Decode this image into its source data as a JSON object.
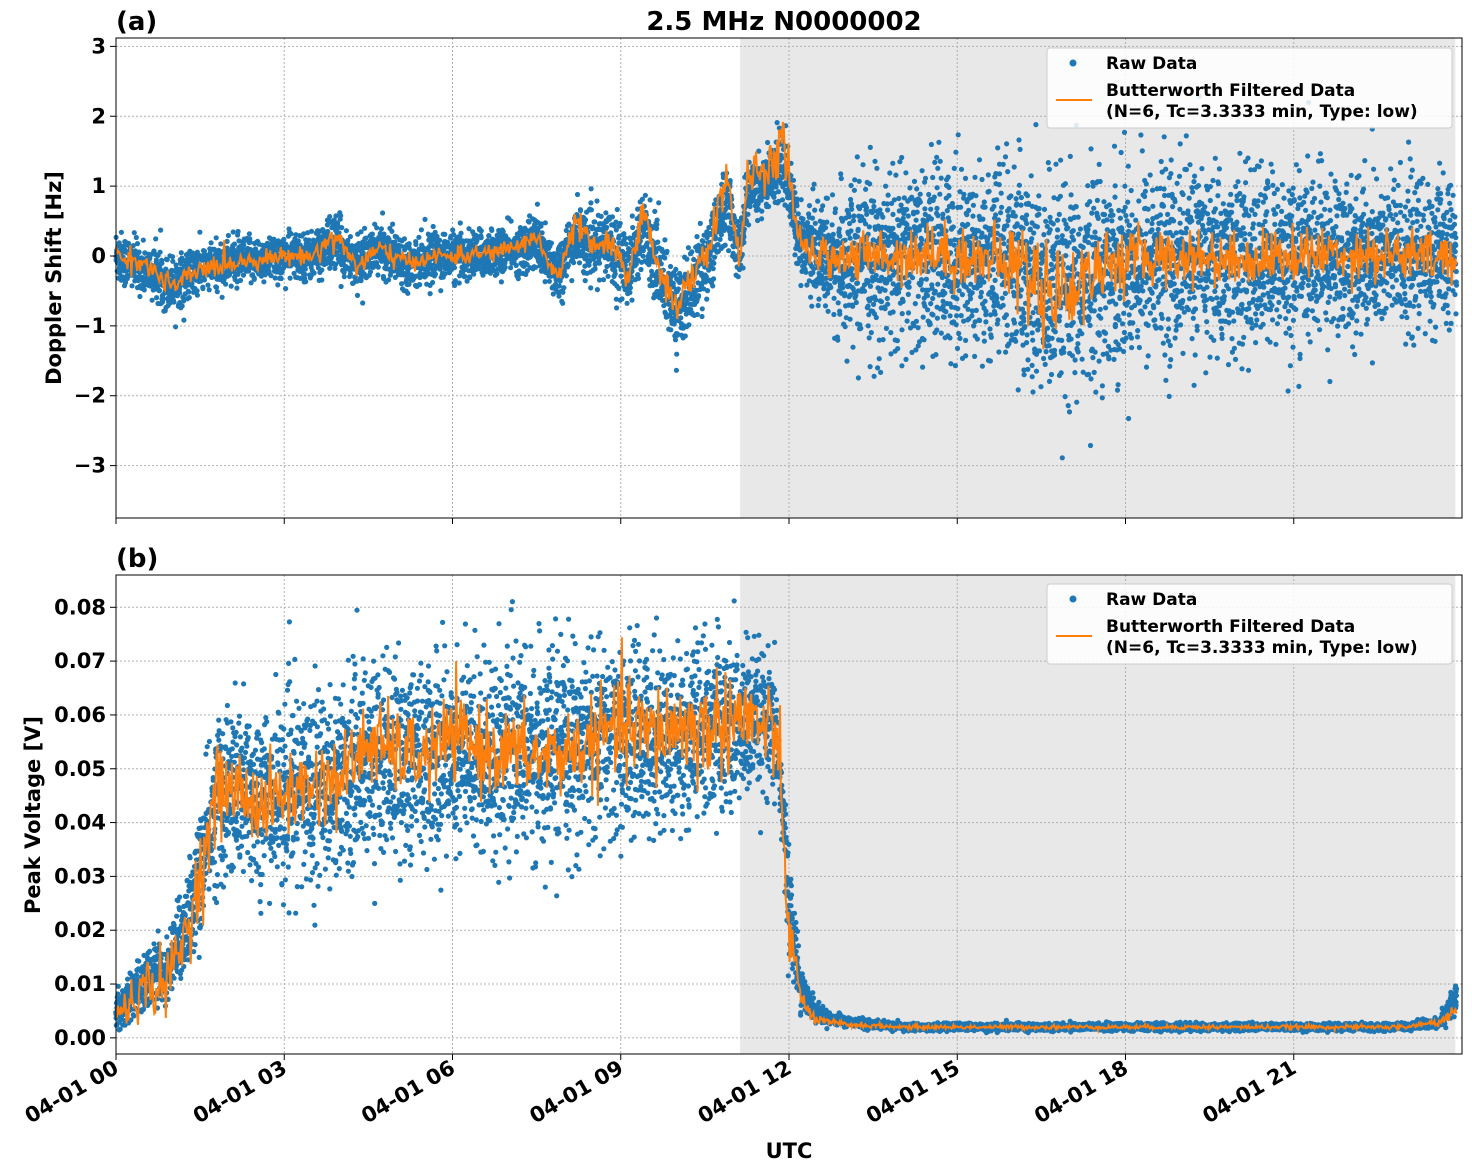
{
  "figure": {
    "title": "2.5 MHz N0000002",
    "xlabel": "UTC",
    "x_ticks": [
      "04-01 00",
      "04-01 03",
      "04-01 06",
      "04-01 09",
      "04-01 12",
      "04-01 15",
      "04-01 18",
      "04-01 21"
    ],
    "shaded_region_hours": [
      11.13,
      23.88
    ],
    "colors": {
      "raw": "#1f77b4",
      "filtered": "#ff7f0e",
      "shade": "#e8e8e8"
    }
  },
  "chart_data": [
    {
      "type": "scatter",
      "panel_label": "(a)",
      "ylabel": "Doppler Shift [Hz]",
      "xlim_hours": [
        0,
        24
      ],
      "ylim": [
        -3.75,
        3.12
      ],
      "y_ticks": [
        3,
        2,
        1,
        0,
        -1,
        -2,
        -3
      ],
      "y_tick_labels": [
        "3",
        "2",
        "1",
        "0",
        "−1",
        "−2",
        "−3"
      ],
      "grid": true,
      "legend_position": "top-right",
      "legend": [
        "Raw Data",
        "Butterworth Filtered Data",
        "(N=6, Tc=3.3333 min, Type: low)"
      ],
      "series": [
        {
          "name": "Raw Data",
          "kind": "scatter-band",
          "x_hours": [
            0,
            0.5,
            1,
            1.5,
            2,
            2.5,
            3,
            3.5,
            3.9,
            4.3,
            4.7,
            5.2,
            5.7,
            6.2,
            6.7,
            7.2,
            7.5,
            7.7,
            7.9,
            8.2,
            8.5,
            8.8,
            9.1,
            9.4,
            9.7,
            10,
            10.3,
            10.6,
            10.9,
            11.1,
            11.3,
            11.6,
            11.9,
            12.2,
            12.5,
            12.8,
            13.5,
            14.5,
            15.5,
            16,
            16.5,
            17,
            17.5,
            18,
            19,
            20,
            21,
            22,
            23,
            23.9
          ],
          "center": [
            0,
            -0.2,
            -0.4,
            -0.2,
            -0.1,
            -0.05,
            0,
            0,
            0.2,
            -0.1,
            0.1,
            -0.1,
            0,
            0,
            0.05,
            0.1,
            0.2,
            -0.1,
            -0.2,
            0.3,
            0.1,
            0.2,
            -0.2,
            0.4,
            -0.2,
            -0.8,
            -0.4,
            0.1,
            0.8,
            0,
            1.0,
            1.0,
            1.4,
            0.2,
            0,
            -0.1,
            -0.1,
            0,
            -0.05,
            -0.1,
            -0.5,
            -0.6,
            -0.2,
            -0.1,
            0,
            -0.1,
            -0.05,
            0,
            0,
            0
          ],
          "spread": [
            0.35,
            0.3,
            0.35,
            0.3,
            0.3,
            0.28,
            0.3,
            0.3,
            0.35,
            0.3,
            0.3,
            0.3,
            0.3,
            0.3,
            0.3,
            0.3,
            0.4,
            0.35,
            0.4,
            0.4,
            0.4,
            0.45,
            0.5,
            0.5,
            0.5,
            0.5,
            0.5,
            0.5,
            0.5,
            0.35,
            0.4,
            0.4,
            0.5,
            0.4,
            0.6,
            0.8,
            1.1,
            1.2,
            1.2,
            1.3,
            1.4,
            1.4,
            1.3,
            1.2,
            1.2,
            1.15,
            1.1,
            1.0,
            1.0,
            0.9
          ]
        },
        {
          "name": "Butterworth Filtered Data",
          "kind": "line",
          "x_hours": [
            0,
            0.5,
            1,
            1.5,
            2,
            2.5,
            3,
            3.5,
            3.9,
            4.3,
            4.7,
            5.2,
            5.7,
            6.2,
            6.7,
            7.2,
            7.5,
            7.7,
            7.9,
            8.2,
            8.5,
            8.8,
            9.1,
            9.4,
            9.7,
            10,
            10.3,
            10.6,
            10.9,
            11.1,
            11.3,
            11.6,
            11.9,
            12.2,
            12.5,
            12.8,
            13.5,
            14.5,
            15.5,
            16,
            16.5,
            17,
            17.5,
            18,
            19,
            20,
            21,
            22,
            23,
            23.9
          ],
          "y": [
            0,
            -0.1,
            -0.45,
            -0.2,
            -0.1,
            -0.05,
            0,
            0,
            0.3,
            -0.15,
            0.1,
            -0.1,
            0,
            0,
            0.05,
            0.15,
            0.3,
            -0.1,
            -0.3,
            0.5,
            0.1,
            0.2,
            -0.3,
            0.6,
            -0.2,
            -0.7,
            -0.3,
            0.2,
            1.2,
            -0.1,
            1.3,
            1.1,
            1.7,
            0.1,
            0,
            0,
            0,
            0.05,
            -0.05,
            -0.1,
            -0.4,
            -0.5,
            -0.15,
            -0.05,
            0,
            -0.05,
            0,
            0.05,
            0,
            -0.05
          ],
          "noise": [
            0.08,
            0.08,
            0.08,
            0.08,
            0.08,
            0.06,
            0.06,
            0.06,
            0.1,
            0.08,
            0.08,
            0.06,
            0.06,
            0.06,
            0.06,
            0.06,
            0.08,
            0.08,
            0.08,
            0.1,
            0.1,
            0.1,
            0.1,
            0.12,
            0.12,
            0.12,
            0.12,
            0.12,
            0.15,
            0.12,
            0.15,
            0.15,
            0.2,
            0.15,
            0.12,
            0.15,
            0.2,
            0.22,
            0.22,
            0.3,
            0.4,
            0.35,
            0.25,
            0.22,
            0.2,
            0.2,
            0.2,
            0.2,
            0.2,
            0.2
          ]
        }
      ]
    },
    {
      "type": "scatter",
      "panel_label": "(b)",
      "ylabel": "Peak Voltage [V]",
      "xlim_hours": [
        0,
        24
      ],
      "ylim": [
        -0.003,
        0.086
      ],
      "y_ticks": [
        0.08,
        0.07,
        0.06,
        0.05,
        0.04,
        0.03,
        0.02,
        0.01,
        0.0
      ],
      "y_tick_labels": [
        "0.08",
        "0.07",
        "0.06",
        "0.05",
        "0.04",
        "0.03",
        "0.02",
        "0.01",
        "0.00"
      ],
      "grid": true,
      "legend_position": "top-right",
      "legend": [
        "Raw Data",
        "Butterworth Filtered Data",
        "(N=6, Tc=3.3333 min, Type: low)"
      ],
      "series": [
        {
          "name": "Raw Data",
          "kind": "scatter-band",
          "x_hours": [
            0,
            0.3,
            0.6,
            0.9,
            1.2,
            1.5,
            1.8,
            2.2,
            2.6,
            3,
            3.5,
            4,
            4.5,
            5,
            5.5,
            6,
            6.5,
            7,
            7.5,
            8,
            8.5,
            9,
            9.5,
            10,
            10.5,
            11,
            11.5,
            11.8,
            12.0,
            12.2,
            12.4,
            12.6,
            13,
            14,
            15,
            16,
            17,
            18,
            19,
            20,
            21,
            22,
            23,
            23.6,
            23.9
          ],
          "center": [
            0.005,
            0.008,
            0.012,
            0.012,
            0.02,
            0.03,
            0.045,
            0.045,
            0.045,
            0.045,
            0.047,
            0.048,
            0.052,
            0.052,
            0.052,
            0.053,
            0.053,
            0.053,
            0.053,
            0.053,
            0.055,
            0.055,
            0.056,
            0.056,
            0.057,
            0.058,
            0.058,
            0.055,
            0.025,
            0.01,
            0.006,
            0.004,
            0.003,
            0.002,
            0.002,
            0.002,
            0.002,
            0.002,
            0.002,
            0.002,
            0.002,
            0.002,
            0.002,
            0.003,
            0.007
          ],
          "spread": [
            0.003,
            0.004,
            0.005,
            0.005,
            0.008,
            0.01,
            0.014,
            0.015,
            0.015,
            0.015,
            0.016,
            0.016,
            0.016,
            0.016,
            0.016,
            0.016,
            0.016,
            0.016,
            0.016,
            0.016,
            0.016,
            0.016,
            0.015,
            0.015,
            0.015,
            0.014,
            0.012,
            0.01,
            0.008,
            0.004,
            0.002,
            0.0012,
            0.0008,
            0.0006,
            0.0006,
            0.0006,
            0.0006,
            0.0006,
            0.0006,
            0.0006,
            0.0006,
            0.0006,
            0.0006,
            0.001,
            0.003
          ]
        },
        {
          "name": "Butterworth Filtered Data",
          "kind": "line",
          "x_hours": [
            0,
            0.3,
            0.6,
            0.9,
            1.2,
            1.5,
            1.8,
            2.2,
            2.6,
            3,
            3.5,
            4,
            4.5,
            5,
            5.5,
            6,
            6.5,
            7,
            7.5,
            8,
            8.5,
            9,
            9.5,
            10,
            10.5,
            11,
            11.5,
            11.8,
            12.0,
            12.2,
            12.4,
            12.6,
            13,
            14,
            15,
            16,
            17,
            18,
            19,
            20,
            21,
            22,
            23,
            23.6,
            23.9
          ],
          "y": [
            0.004,
            0.007,
            0.01,
            0.01,
            0.018,
            0.03,
            0.046,
            0.046,
            0.043,
            0.045,
            0.047,
            0.048,
            0.055,
            0.053,
            0.052,
            0.056,
            0.054,
            0.053,
            0.052,
            0.053,
            0.055,
            0.058,
            0.056,
            0.058,
            0.057,
            0.06,
            0.058,
            0.055,
            0.02,
            0.008,
            0.004,
            0.003,
            0.0025,
            0.002,
            0.002,
            0.002,
            0.002,
            0.002,
            0.002,
            0.002,
            0.002,
            0.002,
            0.002,
            0.003,
            0.005
          ],
          "noise": [
            0.002,
            0.002,
            0.003,
            0.003,
            0.003,
            0.004,
            0.004,
            0.004,
            0.004,
            0.004,
            0.004,
            0.004,
            0.004,
            0.004,
            0.004,
            0.004,
            0.004,
            0.004,
            0.004,
            0.004,
            0.004,
            0.005,
            0.005,
            0.005,
            0.005,
            0.005,
            0.005,
            0.004,
            0.003,
            0.001,
            0.0006,
            0.0004,
            0.0003,
            0.0002,
            0.0002,
            0.0002,
            0.0002,
            0.0002,
            0.0002,
            0.0002,
            0.0002,
            0.0002,
            0.0002,
            0.0004,
            0.001
          ]
        }
      ]
    }
  ]
}
